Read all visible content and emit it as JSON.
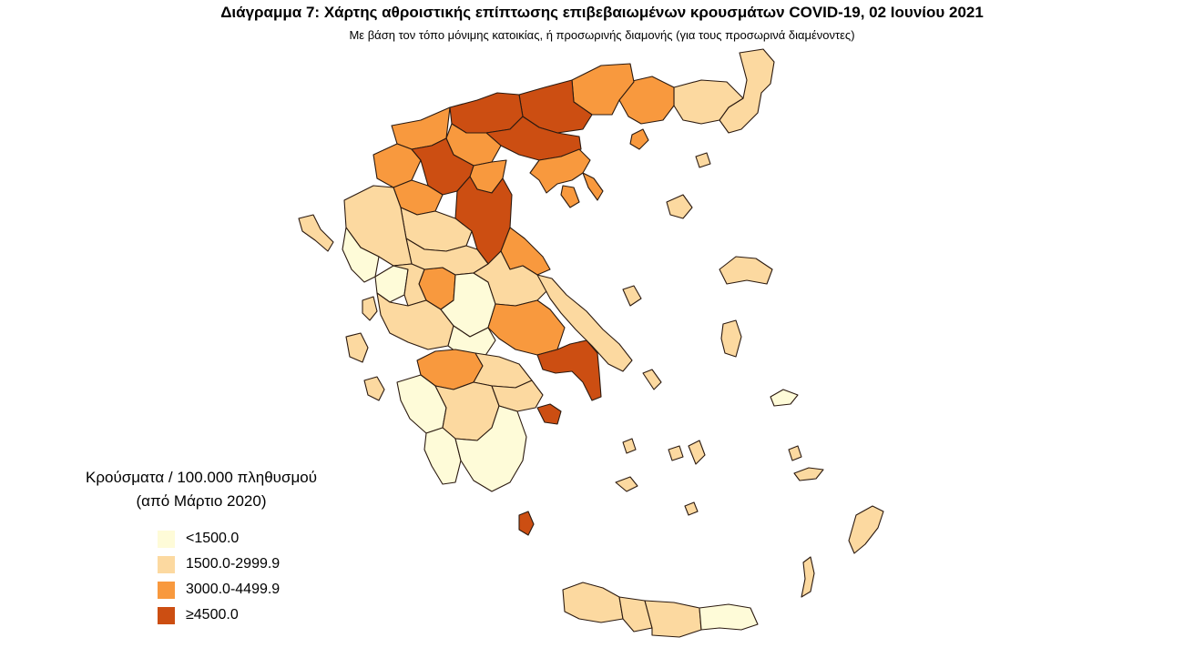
{
  "title": "Διάγραμμα 7: Χάρτης αθροιστικής επίπτωσης επιβεβαιωμένων κρουσμάτων COVID-19, 02 Ιουνίου 2021",
  "subtitle": "Με βάση τον τόπο μόνιμης κατοικίας, ή προσωρινής διαμονής (για τους προσωρινά διαμένοντες)",
  "legend": {
    "title_line1": "Κρούσματα / 100.000 πληθυσμού",
    "title_line2": "(από Μάρτιο 2020)",
    "items": [
      {
        "label": "<1500.0",
        "color": "#fefbd8"
      },
      {
        "label": "1500.0-2999.9",
        "color": "#fcd9a0"
      },
      {
        "label": "3000.0-4499.9",
        "color": "#f8993e"
      },
      {
        "label": "≥4500.0",
        "color": "#cc4e12"
      }
    ]
  },
  "regional_units": [
    {
      "region": "Macedonia - central north (Pella, Kilkis, Thessaloniki)",
      "class": "≥4500.0"
    },
    {
      "region": "Macedonia - west (Kozani, Grevena)",
      "class": "≥4500.0"
    },
    {
      "region": "Larisa",
      "class": "≥4500.0"
    },
    {
      "region": "Attica",
      "class": "≥4500.0"
    },
    {
      "region": "Serres / Drama",
      "class": "3000.0-4499.9"
    },
    {
      "region": "Chalkidiki",
      "class": "3000.0-4499.9"
    },
    {
      "region": "Magnesia",
      "class": "3000.0-4499.9"
    },
    {
      "region": "Florina / Kastoria",
      "class": "3000.0-4499.9"
    },
    {
      "region": "Karditsa",
      "class": "3000.0-4499.9"
    },
    {
      "region": "Boeotia",
      "class": "3000.0-4499.9"
    },
    {
      "region": "Achaea",
      "class": "3000.0-4499.9"
    },
    {
      "region": "Thrace",
      "class": "1500.0-2999.9"
    },
    {
      "region": "Epirus",
      "class": "1500.0-2999.9"
    },
    {
      "region": "Crete",
      "class": "1500.0-2999.9"
    },
    {
      "region": "Peloponnese - south-west",
      "class": "<1500.0"
    }
  ]
}
